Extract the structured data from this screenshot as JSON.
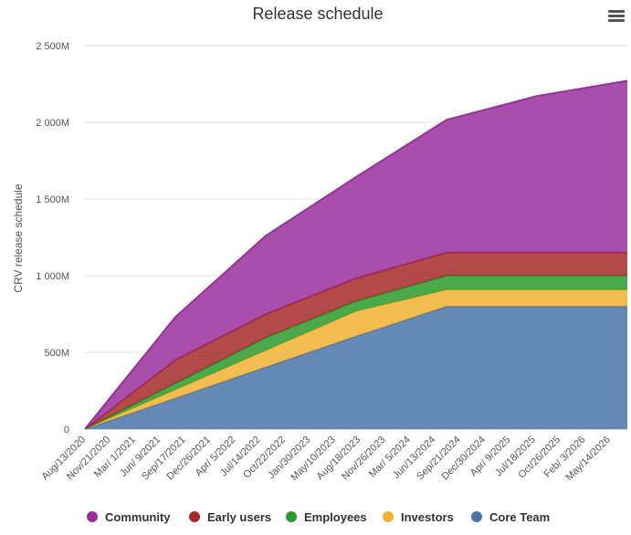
{
  "chart_data": {
    "type": "area",
    "stacked": true,
    "title": "Release schedule",
    "ylabel": "CRV release schedule",
    "xlabel": "",
    "ylim": [
      0,
      2500
    ],
    "y_ticks": [
      0,
      500,
      1000,
      1500,
      2000,
      2500
    ],
    "y_tick_labels": [
      "0",
      "500M",
      "1 000M",
      "1 500M",
      "2 000M",
      "2 500M"
    ],
    "x_tick_labels": [
      "Aug/13/2020",
      "Nov/21/2020",
      "Mar/ 1/2021",
      "Jun/ 9/2021",
      "Sep/17/2021",
      "Dec/26/2021",
      "Apr/ 5/2022",
      "Jul/14/2022",
      "Oct/22/2022",
      "Jan/30/2023",
      "May/10/2023",
      "Aug/18/2023",
      "Nov/26/2023",
      "Mar/ 5/2024",
      "Jun/13/2024",
      "Sep/21/2024",
      "Dec/30/2024",
      "Apr/ 9/2025",
      "Jul/18/2025",
      "Oct/26/2025",
      "Feb/ 3/2026",
      "May/14/2026"
    ],
    "x": [
      "Aug/13/2020",
      "Aug/13/2021",
      "Aug/13/2022",
      "Aug/13/2023",
      "Aug/13/2024",
      "Aug/13/2025",
      "Aug/13/2026"
    ],
    "series": [
      {
        "name": "Core Team",
        "color": "#4a74a8",
        "values": [
          0,
          202,
          404,
          606,
          800,
          800,
          800
        ]
      },
      {
        "name": "Investors",
        "color": "#f2b233",
        "values": [
          0,
          54,
          108,
          162,
          108,
          108,
          108
        ]
      },
      {
        "name": "Employees",
        "color": "#2c9a2c",
        "values": [
          0,
          42,
          84,
          66,
          92,
          92,
          92
        ]
      },
      {
        "name": "Early users",
        "color": "#a52a2a",
        "values": [
          0,
          152,
          154,
          150,
          151,
          151,
          151
        ]
      },
      {
        "name": "Community",
        "color": "#99309c",
        "values": [
          0,
          280,
          510,
          660,
          865,
          1020,
          1120
        ]
      }
    ],
    "legend_order": [
      "Community",
      "Early users",
      "Employees",
      "Investors",
      "Core Team"
    ],
    "legend_position": "bottom",
    "grid": true
  },
  "menu": {
    "icon": "hamburger-menu-icon"
  }
}
